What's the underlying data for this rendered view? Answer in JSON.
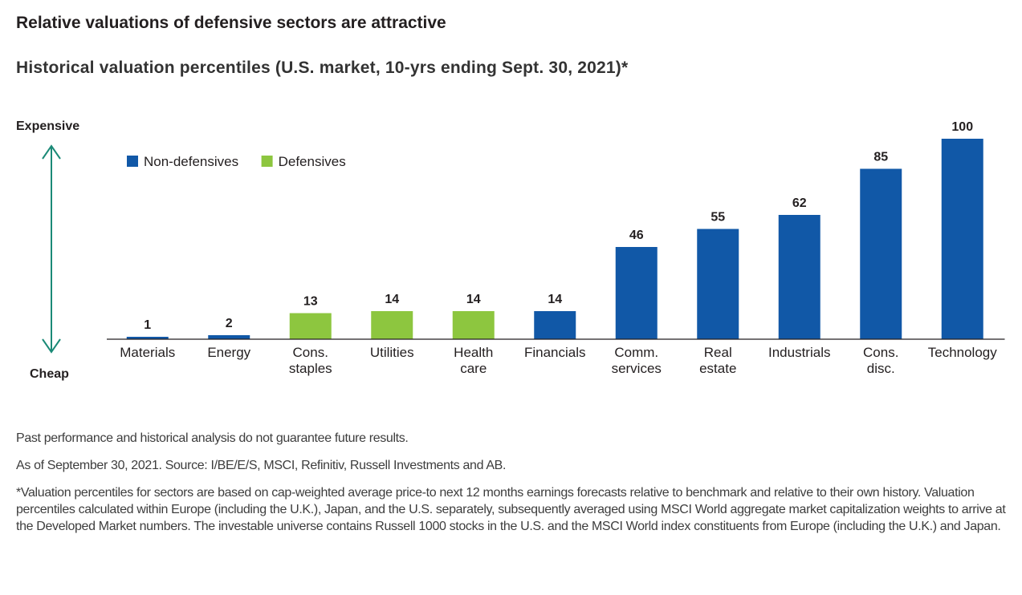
{
  "title": "Relative valuations of defensive sectors are attractive",
  "chart_data": {
    "type": "bar",
    "title": "Historical valuation percentiles (U.S. market, 10-yrs ending Sept. 30, 2021)*",
    "ylabel_top": "Expensive",
    "ylabel_bottom": "Cheap",
    "ylim": [
      0,
      100
    ],
    "grid": false,
    "legend_position": "top-left",
    "series": [
      {
        "name": "Non-defensives",
        "color": "#1158a7"
      },
      {
        "name": "Defensives",
        "color": "#8dc63f"
      }
    ],
    "categories": [
      [
        "Materials"
      ],
      [
        "Energy"
      ],
      [
        "Cons.",
        "staples"
      ],
      [
        "Utilities"
      ],
      [
        "Health",
        "care"
      ],
      [
        "Financials"
      ],
      [
        "Comm.",
        "services"
      ],
      [
        "Real",
        "estate"
      ],
      [
        "Industrials"
      ],
      [
        "Cons.",
        "disc."
      ],
      [
        "Technology"
      ]
    ],
    "values": [
      1,
      2,
      13,
      14,
      14,
      14,
      46,
      55,
      62,
      85,
      100
    ],
    "groups": [
      "Non-defensives",
      "Non-defensives",
      "Defensives",
      "Defensives",
      "Defensives",
      "Non-defensives",
      "Non-defensives",
      "Non-defensives",
      "Non-defensives",
      "Non-defensives",
      "Non-defensives"
    ],
    "arrow_color": "#1b8a77"
  },
  "footnotes": [
    "Past performance and historical analysis do not guarantee future results.",
    "As of September 30, 2021. Source: I/BE/E/S, MSCI, Refinitiv, Russell Investments and AB.",
    "*Valuation percentiles for sectors are based on cap-weighted average price-to next 12 months earnings forecasts relative to benchmark and relative to their own history. Valuation percentiles calculated within Europe (including the U.K.), Japan, and the U.S. separately, subsequently averaged using MSCI World aggregate market capitalization weights to arrive at the Developed Market numbers. The investable universe contains Russell 1000 stocks in the U.S. and the MSCI World index constituents from Europe (including the U.K.) and Japan."
  ]
}
